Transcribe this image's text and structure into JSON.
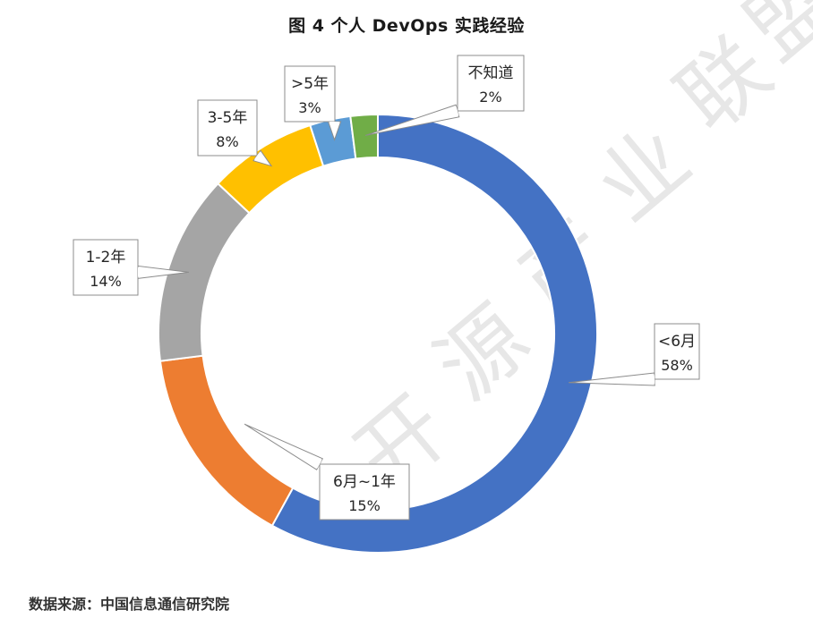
{
  "chart_data": {
    "type": "pie",
    "title": "图 4 个人 DevOps 实践经验",
    "slices": [
      {
        "label": "<6月",
        "value": 58,
        "display": "58%",
        "color": "#4472c4"
      },
      {
        "label": "6月~1年",
        "value": 15,
        "display": "15%",
        "color": "#ed7d31"
      },
      {
        "label": "1-2年",
        "value": 14,
        "display": "14%",
        "color": "#a5a5a5"
      },
      {
        "label": "3-5年",
        "value": 8,
        "display": "8%",
        "color": "#ffc000"
      },
      {
        "label": ">5年",
        "value": 3,
        "display": "3%",
        "color": "#5b9bd5"
      },
      {
        "label": "不知道",
        "value": 2,
        "display": "2%",
        "color": "#70ad47"
      }
    ],
    "source": "数据来源：中国信息通信研究院",
    "watermark": "开源产业联盟"
  }
}
